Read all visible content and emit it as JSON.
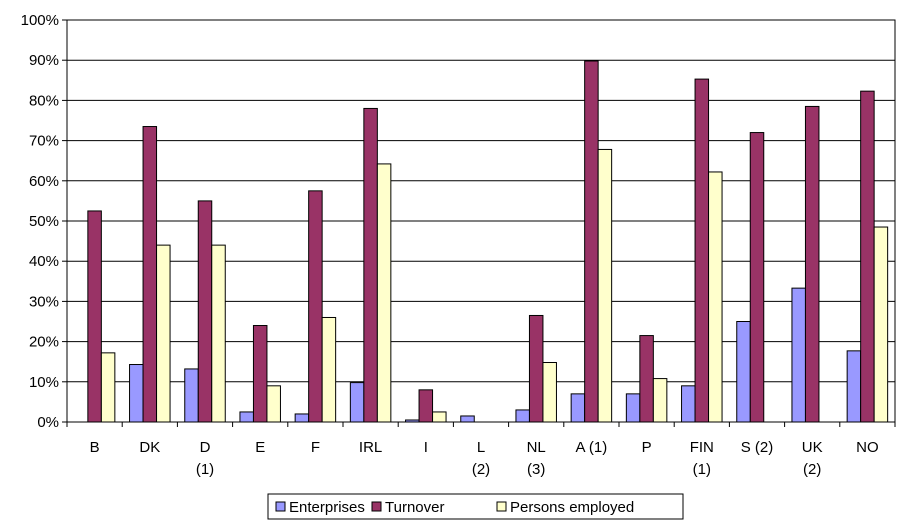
{
  "chart_data": {
    "type": "bar",
    "categories": [
      [
        "B"
      ],
      [
        "DK"
      ],
      [
        "D",
        "(1)"
      ],
      [
        "E"
      ],
      [
        "F"
      ],
      [
        "IRL"
      ],
      [
        "I"
      ],
      [
        "L",
        "(2)"
      ],
      [
        "NL",
        "(3)"
      ],
      [
        "A (1)"
      ],
      [
        "P"
      ],
      [
        "FIN",
        "(1)"
      ],
      [
        "S (2)"
      ],
      [
        "UK",
        "(2)"
      ],
      [
        "NO"
      ]
    ],
    "series": [
      {
        "name": "Enterprises",
        "color": "#9999ff",
        "values": [
          null,
          14.3,
          13.2,
          2.5,
          2.0,
          9.8,
          0.5,
          1.5,
          3.0,
          7.0,
          7.0,
          9.0,
          25.0,
          33.3,
          17.7
        ]
      },
      {
        "name": "Turnover",
        "color": "#993366",
        "values": [
          52.5,
          73.5,
          55.0,
          24.0,
          57.5,
          78.0,
          8.0,
          null,
          26.5,
          89.8,
          21.5,
          85.3,
          72.0,
          78.5,
          82.3
        ]
      },
      {
        "name": "Persons employed",
        "color": "#ffffcc",
        "values": [
          17.2,
          44.0,
          44.0,
          9.0,
          26.0,
          64.2,
          2.5,
          null,
          14.8,
          67.8,
          10.8,
          62.2,
          null,
          null,
          48.5
        ]
      }
    ],
    "y_ticks": [
      "0%",
      "10%",
      "20%",
      "30%",
      "40%",
      "50%",
      "60%",
      "70%",
      "80%",
      "90%",
      "100%"
    ],
    "ylim": [
      0,
      100
    ],
    "grid": true,
    "legend_position": "bottom"
  }
}
